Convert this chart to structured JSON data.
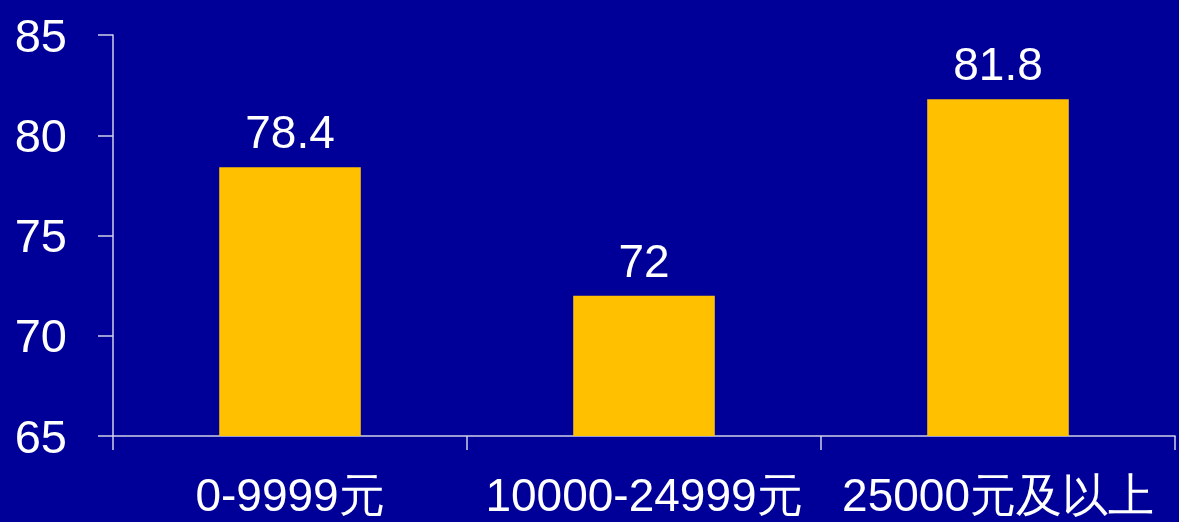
{
  "chart_data": {
    "type": "bar",
    "categories": [
      "0-9999元",
      "10000-24999元",
      "25000元及以上"
    ],
    "values": [
      78.4,
      72,
      81.8
    ],
    "color": "#ffc000",
    "ylim": [
      65,
      85
    ],
    "yticks": [
      65,
      70,
      75,
      80,
      85
    ],
    "data_labels": true
  }
}
